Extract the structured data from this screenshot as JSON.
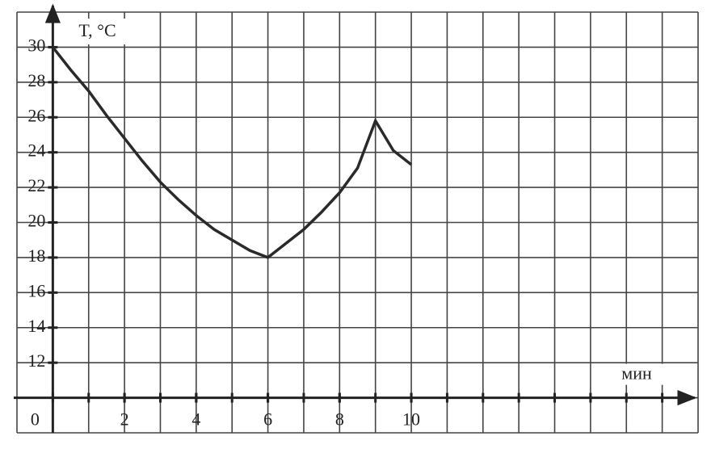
{
  "chart_data": {
    "type": "line",
    "y_label": "T, °C",
    "x_label": "мин",
    "x": [
      0,
      0.5,
      1,
      1.5,
      2,
      2.5,
      3,
      3.5,
      4,
      4.5,
      5,
      5.5,
      6,
      6.5,
      7,
      7.5,
      8,
      8.5,
      9,
      9.5,
      10
    ],
    "series": [
      {
        "color": "#2a2a2a",
        "values": [
          30,
          28.7,
          27.5,
          26.1,
          24.8,
          23.5,
          22.3,
          21.3,
          20.4,
          19.6,
          19,
          18.4,
          18,
          18.8,
          19.6,
          20.6,
          21.7,
          23.1,
          25.8,
          24.1,
          23.3
        ]
      }
    ],
    "xlim": [
      -1,
      18
    ],
    "ylim": [
      8,
      32
    ],
    "xticks": [
      0,
      2,
      4,
      6,
      8,
      10
    ],
    "yticks": [
      12,
      14,
      16,
      18,
      20,
      22,
      24,
      26,
      28,
      30
    ],
    "xgrid_step": 1,
    "ygrid_step": 2,
    "x_axis_crosses": 10,
    "y_axis_crosses": 0,
    "grid": true
  }
}
